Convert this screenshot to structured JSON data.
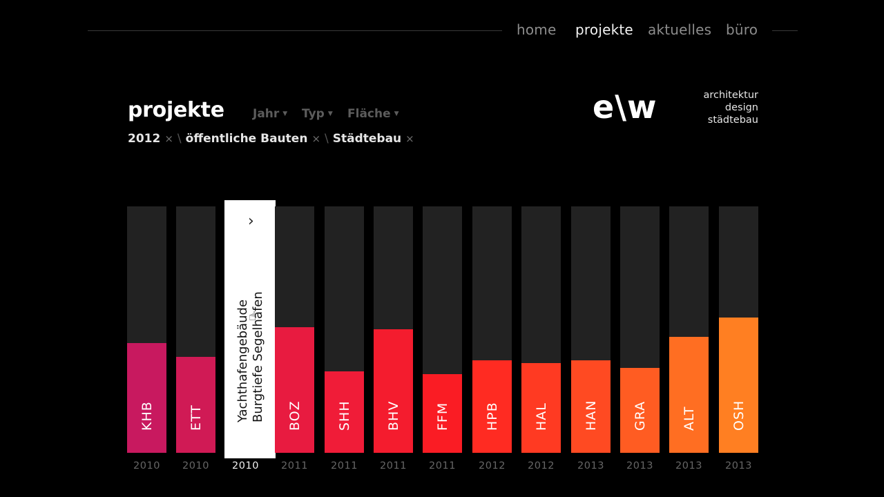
{
  "nav": {
    "items": [
      {
        "label": "home",
        "active": false
      },
      {
        "label": "projekte",
        "active": true
      },
      {
        "label": "aktuelles",
        "active": false
      },
      {
        "label": "büro",
        "active": false
      }
    ]
  },
  "page": {
    "title": "projekte",
    "filters": [
      "Jahr",
      "Typ",
      "Fläche"
    ],
    "active_filters": [
      "2012",
      "öffentliche Bauten",
      "Städtebau"
    ],
    "remove_symbol": "×",
    "separator": "\\"
  },
  "brand": {
    "logo": "e\\w",
    "tagline": [
      "architektur",
      "design",
      "städtebau"
    ]
  },
  "selected": {
    "line1": "Yachthafengebäude",
    "line2": "Burgtiefe Segelhafen",
    "arrow": "›"
  },
  "chart_data": {
    "type": "bar",
    "categories": [
      "KHB",
      "ETT",
      "",
      "BOZ",
      "SHH",
      "BHV",
      "FFM",
      "HPB",
      "HAL",
      "HAN",
      "GRA",
      "ALT",
      "OSH"
    ],
    "years": [
      "2010",
      "2010",
      "2010",
      "2011",
      "2011",
      "2011",
      "2011",
      "2012",
      "2012",
      "2013",
      "2013",
      "2013",
      "2013"
    ],
    "values": [
      0.445,
      0.39,
      null,
      0.51,
      0.33,
      0.5,
      0.32,
      0.375,
      0.365,
      0.375,
      0.345,
      0.47,
      0.55
    ],
    "colors": [
      "#c8195f",
      "#d01a55",
      "#ffffff",
      "#e81b40",
      "#f01c38",
      "#f41c2e",
      "#fa1c24",
      "#ff2b22",
      "#ff3a22",
      "#ff4a22",
      "#ff5c22",
      "#ff6e22",
      "#ff7f22"
    ],
    "selected_index": 2,
    "ylim": [
      0,
      1
    ]
  }
}
